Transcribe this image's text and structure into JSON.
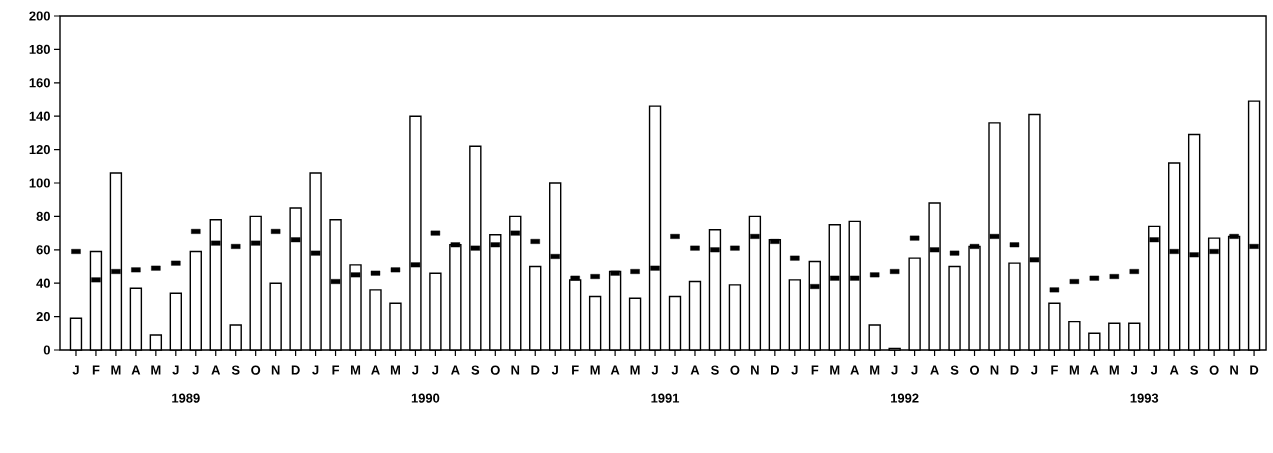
{
  "chart_data": {
    "type": "bar",
    "categories": [
      "J",
      "F",
      "M",
      "A",
      "M",
      "J",
      "J",
      "A",
      "S",
      "O",
      "N",
      "D",
      "J",
      "F",
      "M",
      "A",
      "M",
      "J",
      "J",
      "A",
      "S",
      "O",
      "N",
      "D",
      "J",
      "F",
      "M",
      "A",
      "M",
      "J",
      "J",
      "A",
      "S",
      "O",
      "N",
      "D",
      "J",
      "F",
      "M",
      "A",
      "M",
      "J",
      "J",
      "A",
      "S",
      "O",
      "N",
      "D",
      "J",
      "F",
      "M",
      "A",
      "M",
      "J",
      "J",
      "A",
      "S",
      "O",
      "N",
      "D"
    ],
    "series": [
      {
        "color": "#ffffff",
        "values": [
          19,
          59,
          106,
          37,
          9,
          34,
          59,
          78,
          15,
          80,
          40,
          85,
          106,
          78,
          51,
          36,
          28,
          140,
          46,
          63,
          122,
          69,
          80,
          50,
          100,
          42,
          32,
          47,
          31,
          146,
          32,
          41,
          72,
          39,
          80,
          66,
          42,
          53,
          75,
          77,
          15,
          1,
          55,
          88,
          50,
          62,
          136,
          52,
          141,
          28,
          17,
          10,
          16,
          16,
          74,
          112,
          129,
          67,
          68,
          149
        ]
      },
      {
        "type": "scatter",
        "marker": "square",
        "color": "#000000",
        "values": [
          59,
          42,
          47,
          48,
          49,
          52,
          71,
          64,
          62,
          64,
          71,
          66,
          58,
          41,
          45,
          46,
          48,
          51,
          70,
          63,
          61,
          63,
          70,
          65,
          56,
          43,
          44,
          46,
          47,
          49,
          68,
          61,
          60,
          61,
          68,
          65,
          55,
          38,
          43,
          43,
          45,
          47,
          67,
          60,
          58,
          62,
          68,
          63,
          54,
          36,
          41,
          43,
          44,
          47,
          66,
          59,
          57,
          59,
          68,
          62
        ]
      }
    ],
    "ylim": [
      0,
      200
    ],
    "yticks": [
      0,
      20,
      40,
      60,
      80,
      100,
      120,
      140,
      160,
      180,
      200
    ],
    "annotations": [
      "1989",
      "1990",
      "1991",
      "1992",
      "1993"
    ]
  }
}
